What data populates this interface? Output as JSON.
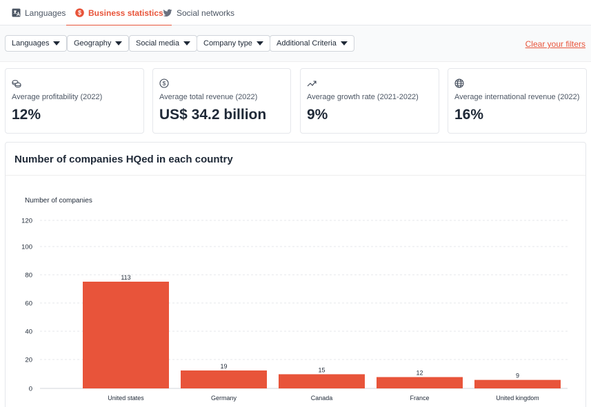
{
  "tabs": [
    {
      "label": "Languages",
      "icon": "translate-icon",
      "active": false
    },
    {
      "label": "Business statistics",
      "icon": "dollar-circle-icon",
      "active": true
    },
    {
      "label": "Social networks",
      "icon": "twitter-icon",
      "active": false
    }
  ],
  "filters": {
    "items": [
      "Languages",
      "Geography",
      "Social media",
      "Company type",
      "Additional Criteria"
    ],
    "clear_label": "Clear your filters"
  },
  "kpis": [
    {
      "icon": "coins-icon",
      "label": "Average profitability (2022)",
      "value": "12%"
    },
    {
      "icon": "dollar-circle-icon",
      "label": "Average total revenue (2022)",
      "value": "US$ 34.2 billion"
    },
    {
      "icon": "trend-up-icon",
      "label": "Average growth rate (2021-2022)",
      "value": "9%"
    },
    {
      "icon": "globe-icon",
      "label": "Average international revenue (2022)",
      "value": "16%"
    }
  ],
  "colors": {
    "accent": "#e8543a",
    "bar": "#e8543a"
  },
  "chart_data": {
    "type": "bar",
    "title": "Number of companies HQed in each country",
    "ylabel": "Number of companies",
    "xlabel": "",
    "categories": [
      "United states",
      "Germany",
      "Canada",
      "France",
      "United kingdom"
    ],
    "values": [
      113,
      19,
      15,
      12,
      9
    ],
    "data_labels": [
      "113",
      "19",
      "15",
      "12",
      "9"
    ],
    "yticks": [
      0,
      20,
      40,
      60,
      80,
      100,
      120
    ],
    "ylim": [
      0,
      120
    ],
    "grid": true,
    "scale_note": "axis is non-linear; bars scaled to fit"
  }
}
